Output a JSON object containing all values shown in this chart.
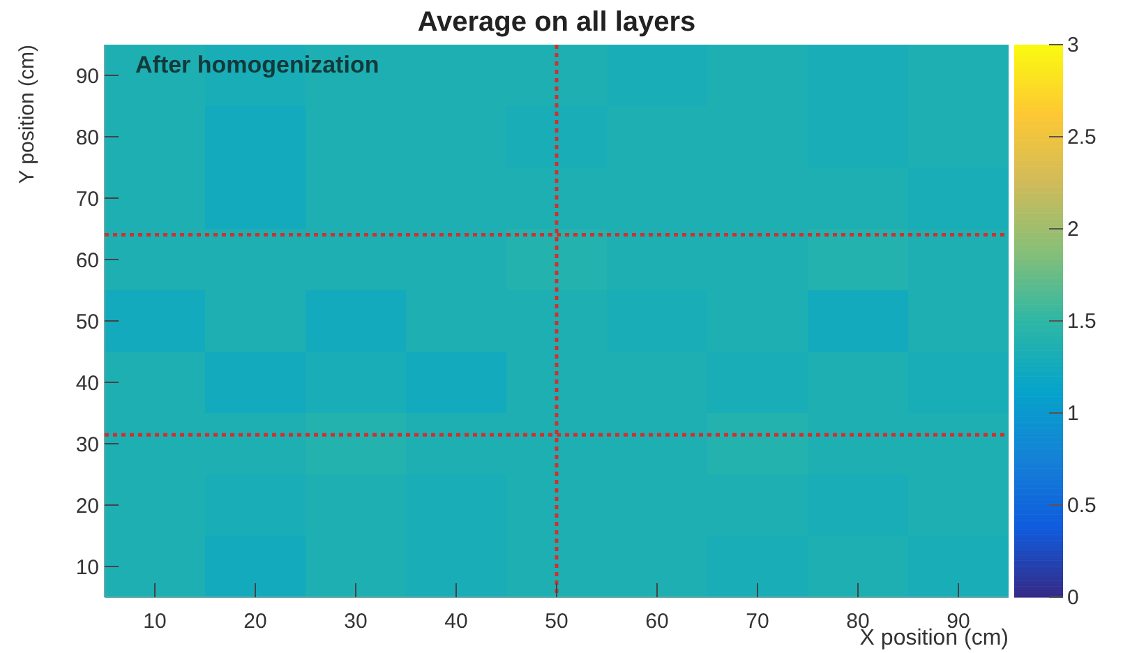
{
  "chart_data": {
    "type": "heatmap",
    "title": "Average on all layers",
    "xlabel": "X position (cm)",
    "ylabel": "Y position (cm)",
    "annotations": [
      "After homogenization"
    ],
    "categories": [
      "10",
      "20",
      "30",
      "40",
      "50",
      "60",
      "70",
      "80",
      "90"
    ],
    "y_categories": [
      "90",
      "80",
      "70",
      "60",
      "50",
      "40",
      "30",
      "20",
      "10"
    ],
    "cells": [
      [
        1.35,
        1.3,
        1.35,
        1.35,
        1.35,
        1.3,
        1.35,
        1.3,
        1.35
      ],
      [
        1.35,
        1.25,
        1.35,
        1.35,
        1.3,
        1.35,
        1.35,
        1.3,
        1.35
      ],
      [
        1.35,
        1.25,
        1.35,
        1.35,
        1.35,
        1.35,
        1.35,
        1.35,
        1.3
      ],
      [
        1.35,
        1.35,
        1.35,
        1.35,
        1.4,
        1.35,
        1.35,
        1.4,
        1.35
      ],
      [
        1.25,
        1.35,
        1.25,
        1.35,
        1.35,
        1.3,
        1.35,
        1.25,
        1.35
      ],
      [
        1.35,
        1.25,
        1.3,
        1.25,
        1.35,
        1.35,
        1.3,
        1.35,
        1.3
      ],
      [
        1.35,
        1.35,
        1.4,
        1.35,
        1.35,
        1.35,
        1.4,
        1.35,
        1.35
      ],
      [
        1.35,
        1.3,
        1.35,
        1.3,
        1.35,
        1.35,
        1.35,
        1.3,
        1.35
      ],
      [
        1.35,
        1.25,
        1.35,
        1.3,
        1.35,
        1.35,
        1.3,
        1.35,
        1.3
      ]
    ],
    "clim": [
      0,
      3
    ],
    "cticks": [
      0,
      0.5,
      1,
      1.5,
      2,
      2.5,
      3
    ],
    "ref_lines": [
      {
        "axis": "x",
        "value": "50",
        "color": "#d03030",
        "line_style": "dotted"
      }
    ]
  }
}
